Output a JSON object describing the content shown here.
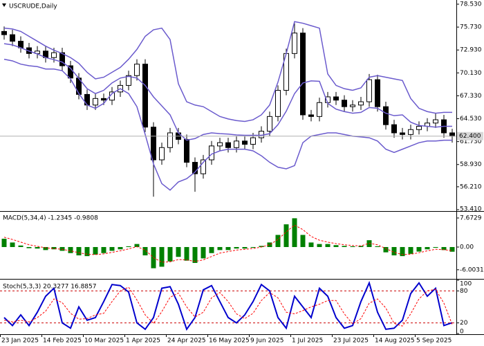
{
  "chart_data": [
    {
      "type": "candlestick",
      "title": "USCRUDE,Daily",
      "xlim": [
        0,
        55
      ],
      "ylim": [
        53.24,
        79.04
      ],
      "yticks": [
        {
          "value": 78.53,
          "label": "78.530"
        },
        {
          "value": 75.73,
          "label": "75.730"
        },
        {
          "value": 72.93,
          "label": "72.930"
        },
        {
          "value": 70.13,
          "label": "70.130"
        },
        {
          "value": 67.33,
          "label": "67.330"
        },
        {
          "value": 64.53,
          "label": "64.530"
        },
        {
          "value": 61.73,
          "label": "61.730"
        },
        {
          "value": 58.93,
          "label": "58.930"
        },
        {
          "value": 56.21,
          "label": "56.210"
        },
        {
          "value": 53.41,
          "label": "53.410"
        }
      ],
      "last_price": {
        "value": 62.4,
        "label": "62.400"
      },
      "color": "#000000",
      "open": [
        75.2,
        74.8,
        74.0,
        73.2,
        72.5,
        72.8,
        72.0,
        72.6,
        71.0,
        69.5,
        67.5,
        66.2,
        67.0,
        66.8,
        67.8,
        68.6,
        69.8,
        71.2,
        63.5,
        59.5,
        61.0,
        62.8,
        62.0,
        59.2,
        57.8,
        59.5,
        61.2,
        61.6,
        61.0,
        61.8,
        61.4,
        62.2,
        63.0,
        64.8,
        68.0,
        72.5,
        75.0,
        65.0,
        64.8,
        66.5,
        67.2,
        66.8,
        66.0,
        66.2,
        66.6,
        69.3,
        66.0,
        63.8,
        62.8,
        62.6,
        63.2,
        63.6,
        64.0,
        64.4,
        62.8
      ],
      "high": [
        75.8,
        75.4,
        74.6,
        73.8,
        73.4,
        73.4,
        73.2,
        73.2,
        71.6,
        70.1,
        68.1,
        67.6,
        67.6,
        68.4,
        69.2,
        70.4,
        71.8,
        71.8,
        64.1,
        61.6,
        63.4,
        63.4,
        62.6,
        59.8,
        60.1,
        61.8,
        62.2,
        62.2,
        62.4,
        62.4,
        62.8,
        63.6,
        65.4,
        68.6,
        73.1,
        76.2,
        75.6,
        65.6,
        67.1,
        67.8,
        67.8,
        67.4,
        66.8,
        67.2,
        70.0,
        69.9,
        66.6,
        64.4,
        63.4,
        63.8,
        64.2,
        64.6,
        65.2,
        65.0,
        63.3
      ],
      "low": [
        74.2,
        73.4,
        72.6,
        71.9,
        71.9,
        71.4,
        71.4,
        70.4,
        68.9,
        66.9,
        65.6,
        65.6,
        66.2,
        66.2,
        67.2,
        68.0,
        69.2,
        62.9,
        55.0,
        58.9,
        60.4,
        61.4,
        58.6,
        55.6,
        57.2,
        58.9,
        60.6,
        60.4,
        60.4,
        60.8,
        60.8,
        61.6,
        62.4,
        64.2,
        67.4,
        71.9,
        64.4,
        64.2,
        64.2,
        65.9,
        66.2,
        65.4,
        65.4,
        65.6,
        66.0,
        65.4,
        63.2,
        62.2,
        62.0,
        62.0,
        62.6,
        63.0,
        63.4,
        62.2,
        61.6
      ],
      "close": [
        74.8,
        74.0,
        73.2,
        72.5,
        72.8,
        72.0,
        72.6,
        71.0,
        69.5,
        67.5,
        66.2,
        67.0,
        66.8,
        67.8,
        68.6,
        69.8,
        71.2,
        63.5,
        59.5,
        61.0,
        62.8,
        62.0,
        59.2,
        57.8,
        59.5,
        61.2,
        61.6,
        61.0,
        61.8,
        61.4,
        62.2,
        63.0,
        64.8,
        68.0,
        72.5,
        75.0,
        65.0,
        64.8,
        66.5,
        67.2,
        66.8,
        66.0,
        66.2,
        66.6,
        69.3,
        66.0,
        63.8,
        62.8,
        62.6,
        63.2,
        63.6,
        64.0,
        64.4,
        62.8,
        62.4
      ],
      "bands": {
        "color": "#6a5acd",
        "upper": [
          75.6,
          75.5,
          75.2,
          74.6,
          74.0,
          73.4,
          72.9,
          72.5,
          72.0,
          71.3,
          70.2,
          69.4,
          69.6,
          70.2,
          70.8,
          71.8,
          73.0,
          74.6,
          75.4,
          75.6,
          74.2,
          68.8,
          66.6,
          66.2,
          66.0,
          65.4,
          64.8,
          64.5,
          64.3,
          64.2,
          64.4,
          65.0,
          66.2,
          69.0,
          72.5,
          76.4,
          76.2,
          75.9,
          75.6,
          70.0,
          68.6,
          68.2,
          68.0,
          68.3,
          69.6,
          69.8,
          69.6,
          69.4,
          69.2,
          67.0,
          65.8,
          65.4,
          65.2,
          65.3,
          65.3
        ],
        "middle": [
          73.7,
          73.55,
          73.2,
          72.8,
          72.45,
          72.0,
          71.75,
          71.45,
          70.7,
          69.45,
          68.2,
          67.6,
          68.0,
          68.9,
          69.5,
          69.7,
          69.5,
          68.6,
          67.2,
          66.1,
          65.0,
          62.8,
          61.9,
          62.1,
          62.6,
          62.8,
          62.7,
          62.65,
          62.55,
          62.5,
          62.5,
          62.5,
          62.7,
          63.8,
          65.45,
          67.6,
          68.9,
          69.15,
          69.1,
          66.4,
          65.7,
          65.4,
          65.2,
          65.3,
          65.9,
          65.8,
          65.2,
          64.9,
          65.0,
          64.1,
          63.7,
          63.6,
          63.5,
          63.6,
          63.6
        ],
        "lower": [
          71.8,
          71.6,
          71.2,
          71.0,
          70.9,
          70.6,
          70.6,
          70.4,
          69.4,
          67.6,
          66.2,
          65.8,
          66.4,
          67.6,
          68.2,
          67.6,
          66.0,
          62.6,
          59.0,
          56.6,
          55.8,
          56.8,
          57.2,
          58.0,
          59.2,
          60.2,
          60.6,
          60.8,
          60.8,
          60.8,
          60.6,
          60.0,
          59.2,
          58.6,
          58.4,
          58.8,
          61.6,
          62.4,
          62.6,
          62.8,
          62.8,
          62.6,
          62.4,
          62.3,
          62.2,
          61.8,
          60.8,
          60.4,
          60.8,
          61.2,
          61.6,
          61.8,
          61.8,
          61.9,
          61.9
        ]
      }
    },
    {
      "type": "indicator",
      "title": "MACD(5,34,4) -1.2345 -0.9808",
      "xlim": [
        0,
        55
      ],
      "ylim": [
        -8.41,
        9.32
      ],
      "yticks": [
        7.6729,
        {
          "value": 0,
          "label": "0.00"
        },
        -6.0031
      ],
      "series": [
        {
          "type": "bar",
          "color": "#008000",
          "values": [
            2.2,
            1.2,
            0.4,
            -0.3,
            -0.4,
            -0.8,
            -0.6,
            -1.0,
            -1.6,
            -2.2,
            -2.4,
            -2.0,
            -1.6,
            -1.0,
            -0.6,
            0.2,
            0.8,
            -2.2,
            -5.6,
            -5.2,
            -3.8,
            -2.6,
            -3.6,
            -4.2,
            -3.0,
            -1.6,
            -0.8,
            -0.8,
            -0.4,
            -0.4,
            -0.2,
            0.3,
            1.2,
            3.2,
            6.0,
            7.6,
            3.2,
            1.2,
            0.8,
            0.8,
            0.5,
            0.3,
            0.2,
            0.3,
            1.8,
            0.2,
            -1.4,
            -2.2,
            -2.4,
            -1.8,
            -1.2,
            -0.6,
            -0.2,
            -0.8,
            -1.2345
          ]
        },
        {
          "type": "line",
          "color": "#ff0000",
          "dashed": true,
          "values": [
            2.6,
            2.0,
            1.3,
            0.6,
            0.2,
            -0.2,
            -0.4,
            -0.6,
            -1.0,
            -1.5,
            -1.9,
            -2.0,
            -1.8,
            -1.4,
            -1.0,
            -0.5,
            0.1,
            -0.8,
            -2.8,
            -4.0,
            -3.9,
            -3.3,
            -3.4,
            -3.8,
            -3.4,
            -2.5,
            -1.6,
            -1.2,
            -0.8,
            -0.6,
            -0.4,
            0.0,
            0.6,
            2.0,
            4.0,
            5.8,
            4.6,
            2.8,
            1.8,
            1.3,
            0.9,
            0.6,
            0.4,
            0.3,
            1.0,
            0.6,
            -0.4,
            -1.4,
            -2.0,
            -1.9,
            -1.5,
            -1.0,
            -0.6,
            -0.7,
            -0.9808
          ]
        }
      ]
    },
    {
      "type": "indicator",
      "title": "Stoch(5,3,3) 20.3277 16.8857",
      "xlim": [
        0,
        55
      ],
      "ylim": [
        0,
        100
      ],
      "yticks": [
        100,
        80,
        20,
        0
      ],
      "levels": [
        20,
        80
      ],
      "level_color": "#cc0000",
      "xticks": [
        {
          "value": 0,
          "label": "23 Jan 2025"
        },
        {
          "value": 5,
          "label": "14 Feb 2025"
        },
        {
          "value": 10,
          "label": "10 Mar 2025"
        },
        {
          "value": 15,
          "label": "1 Apr 2025"
        },
        {
          "value": 20,
          "label": "24 Apr 2025"
        },
        {
          "value": 25,
          "label": "16 May 2025"
        },
        {
          "value": 30,
          "label": "9 Jun 2025"
        },
        {
          "value": 35,
          "label": "1 Jul 2025"
        },
        {
          "value": 40,
          "label": "23 Jul 2025"
        },
        {
          "value": 45,
          "label": "14 Aug 2025"
        },
        {
          "value": 50,
          "label": "5 Sep 2025"
        }
      ],
      "series": [
        {
          "type": "line",
          "color": "#0000cd",
          "values": [
            30,
            15,
            35,
            15,
            40,
            70,
            85,
            20,
            10,
            50,
            25,
            30,
            60,
            92,
            90,
            78,
            20,
            8,
            30,
            85,
            88,
            55,
            8,
            30,
            82,
            90,
            60,
            30,
            20,
            35,
            60,
            92,
            80,
            30,
            10,
            70,
            50,
            30,
            85,
            70,
            30,
            10,
            15,
            60,
            95,
            40,
            8,
            10,
            25,
            75,
            95,
            70,
            85,
            15,
            20.3277
          ]
        },
        {
          "type": "line",
          "color": "#ff0000",
          "dashed": true,
          "values": [
            25,
            22,
            25,
            22,
            30,
            42,
            65,
            58,
            38,
            27,
            28,
            35,
            38,
            60,
            80,
            87,
            63,
            35,
            19,
            41,
            68,
            76,
            50,
            31,
            40,
            67,
            77,
            60,
            37,
            28,
            38,
            62,
            77,
            67,
            40,
            37,
            43,
            50,
            55,
            62,
            62,
            37,
            18,
            28,
            57,
            65,
            48,
            19,
            14,
            37,
            65,
            80,
            83,
            57,
            16.8857
          ]
        }
      ]
    }
  ]
}
